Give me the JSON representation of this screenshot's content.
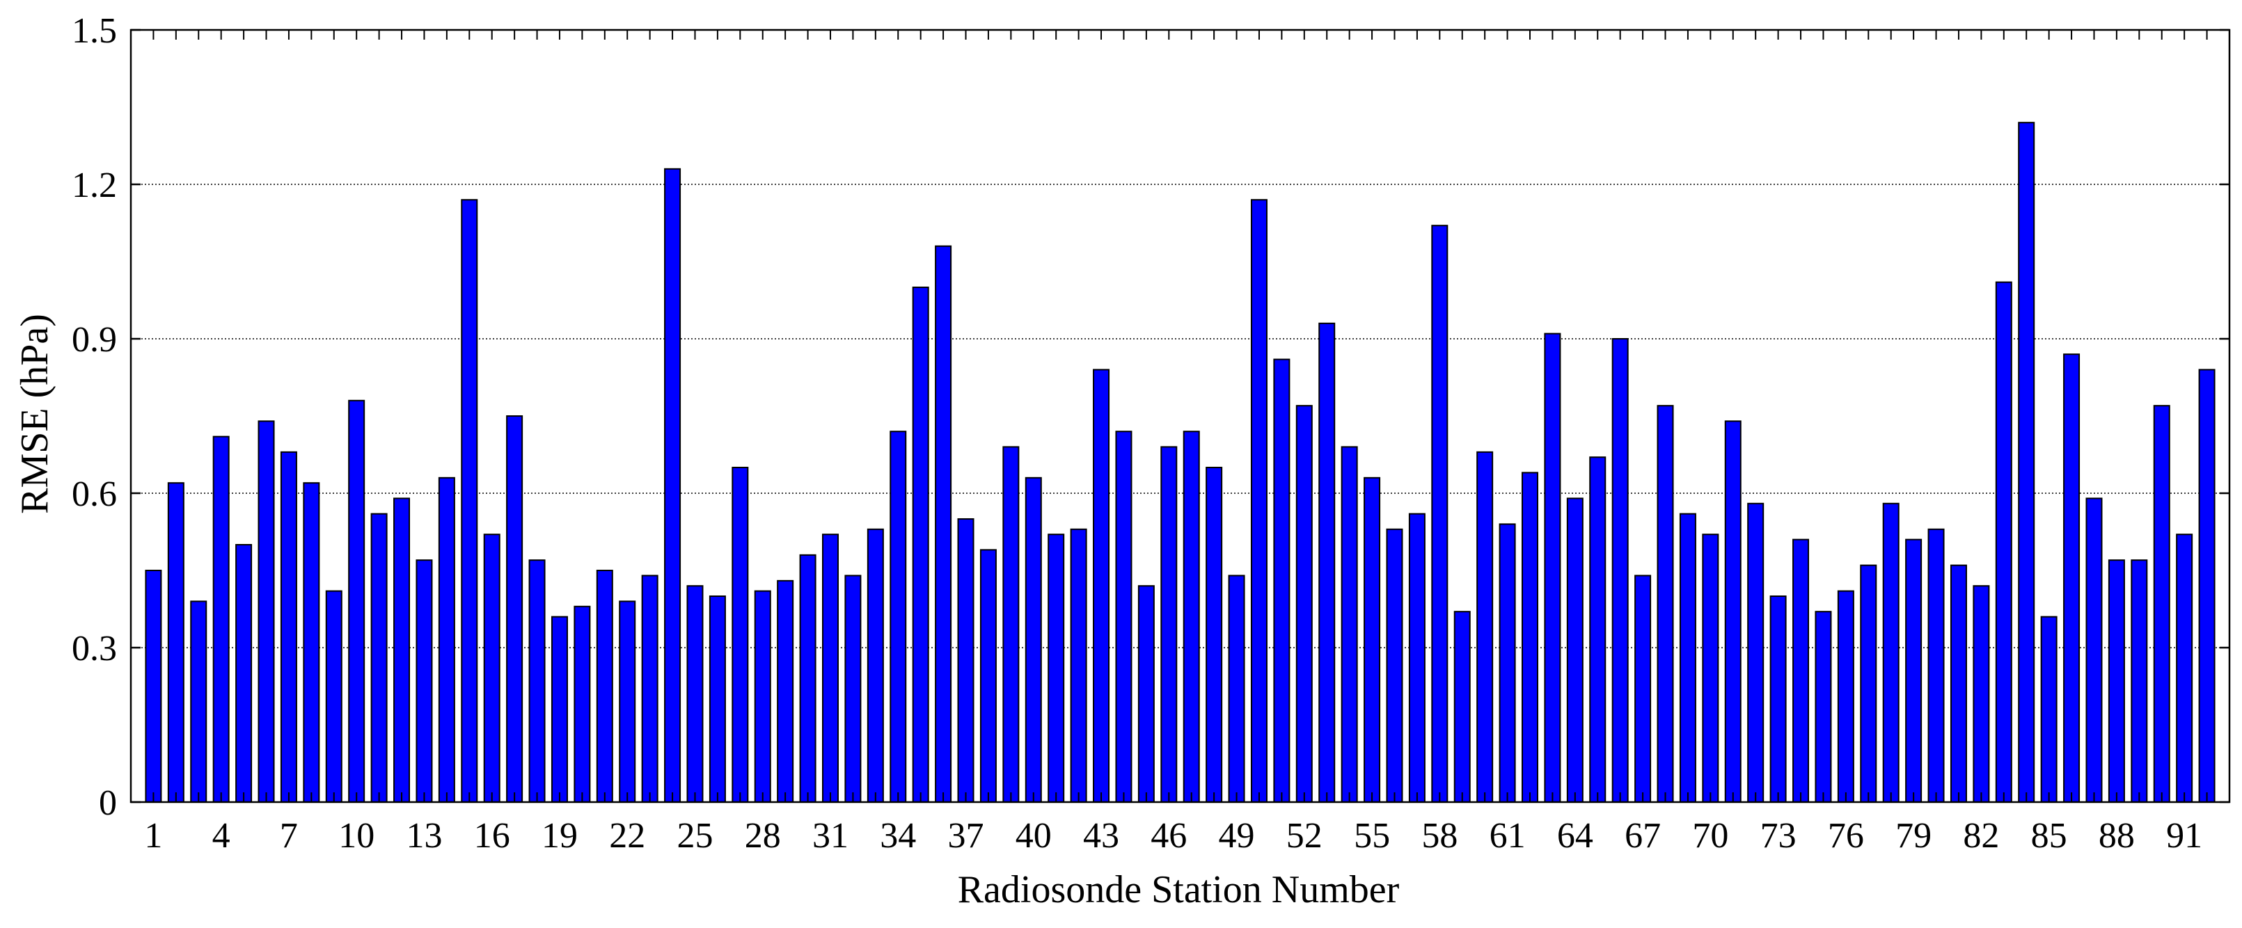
{
  "chart_data": {
    "type": "bar",
    "xlabel": "Radiosonde Station Number",
    "ylabel": "RMSE (hPa)",
    "ylim": [
      0,
      1.5
    ],
    "yticks": [
      "0",
      "0.3",
      "0.6",
      "0.9",
      "1.2",
      "1.5"
    ],
    "xtick_labels": [
      "1",
      "4",
      "7",
      "10",
      "13",
      "16",
      "19",
      "22",
      "25",
      "28",
      "31",
      "34",
      "37",
      "40",
      "43",
      "46",
      "49",
      "52",
      "55",
      "58",
      "61",
      "64",
      "67",
      "70",
      "73",
      "76",
      "79",
      "82",
      "85",
      "88",
      "91"
    ],
    "grid": "horizontal-dotted",
    "bar_color": "#0000ff",
    "categories": [
      1,
      2,
      3,
      4,
      5,
      6,
      7,
      8,
      9,
      10,
      11,
      12,
      13,
      14,
      15,
      16,
      17,
      18,
      19,
      20,
      21,
      22,
      23,
      24,
      25,
      26,
      27,
      28,
      29,
      30,
      31,
      32,
      33,
      34,
      35,
      36,
      37,
      38,
      39,
      40,
      41,
      42,
      43,
      44,
      45,
      46,
      47,
      48,
      49,
      50,
      51,
      52,
      53,
      54,
      55,
      56,
      57,
      58,
      59,
      60,
      61,
      62,
      63,
      64,
      65,
      66,
      67,
      68,
      69,
      70,
      71,
      72,
      73,
      74,
      75,
      76,
      77,
      78,
      79,
      80,
      81,
      82,
      83,
      84,
      85,
      86,
      87,
      88,
      89,
      90,
      91,
      92
    ],
    "values": [
      0.45,
      0.62,
      0.39,
      0.71,
      0.5,
      0.74,
      0.68,
      0.62,
      0.41,
      0.78,
      0.56,
      0.59,
      0.47,
      0.63,
      1.17,
      0.52,
      0.75,
      0.47,
      0.36,
      0.38,
      0.45,
      0.39,
      0.44,
      1.23,
      0.42,
      0.4,
      0.65,
      0.41,
      0.43,
      0.48,
      0.52,
      0.44,
      0.53,
      0.72,
      1.0,
      1.08,
      0.55,
      0.49,
      0.69,
      0.63,
      0.52,
      0.53,
      0.84,
      0.72,
      0.42,
      0.69,
      0.72,
      0.65,
      0.44,
      1.17,
      0.86,
      0.77,
      0.93,
      0.69,
      0.63,
      0.53,
      0.56,
      1.12,
      0.37,
      0.68,
      0.54,
      0.64,
      0.91,
      0.59,
      0.67,
      0.9,
      0.44,
      0.77,
      0.56,
      0.52,
      0.74,
      0.58,
      0.4,
      0.51,
      0.37,
      0.41,
      0.46,
      0.58,
      0.51,
      0.53,
      0.46,
      0.42,
      1.01,
      1.32,
      0.36,
      0.87,
      0.59,
      0.47,
      0.47,
      0.77,
      0.52,
      0.84
    ]
  }
}
